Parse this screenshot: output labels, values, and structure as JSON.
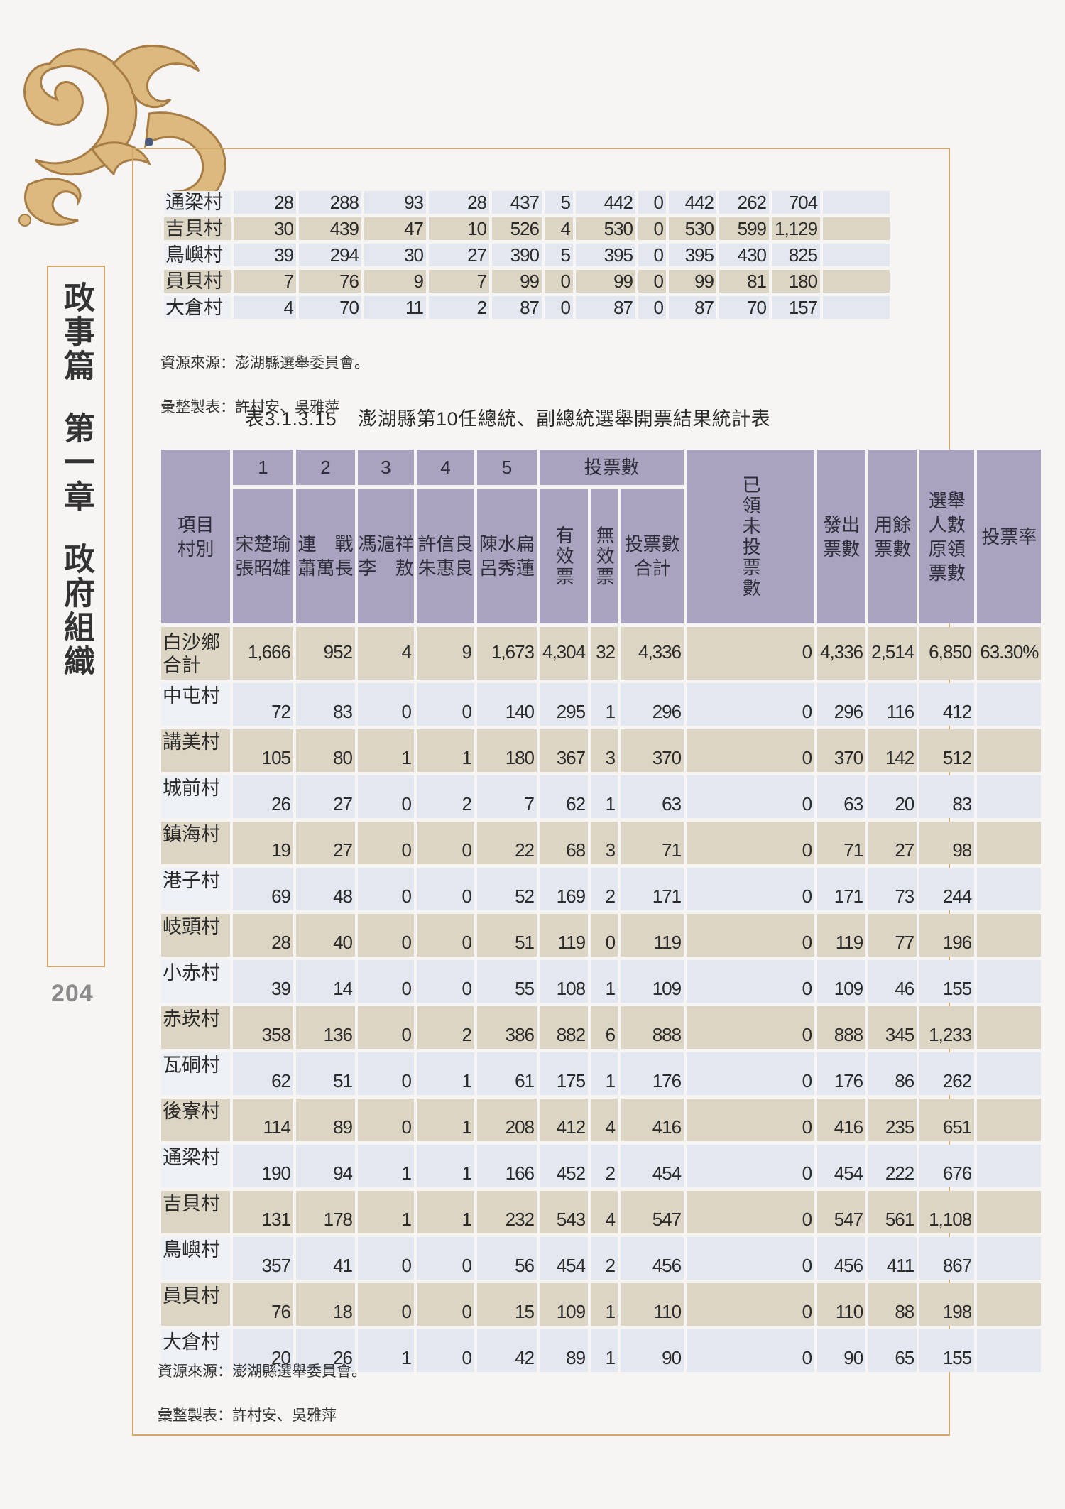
{
  "sidebar": {
    "part": "政事篇",
    "chapter": "第一章",
    "section": "政府組織"
  },
  "page_number": "204",
  "table_prev": {
    "rows": [
      {
        "name": "通梁村",
        "values": [
          "28",
          "288",
          "93",
          "28",
          "437",
          "5",
          "442",
          "0",
          "442",
          "262",
          "704",
          ""
        ]
      },
      {
        "name": "吉貝村",
        "values": [
          "30",
          "439",
          "47",
          "10",
          "526",
          "4",
          "530",
          "0",
          "530",
          "599",
          "1,129",
          ""
        ]
      },
      {
        "name": "鳥嶼村",
        "values": [
          "39",
          "294",
          "30",
          "27",
          "390",
          "5",
          "395",
          "0",
          "395",
          "430",
          "825",
          ""
        ]
      },
      {
        "name": "員貝村",
        "values": [
          "7",
          "76",
          "9",
          "7",
          "99",
          "0",
          "99",
          "0",
          "99",
          "81",
          "180",
          ""
        ]
      },
      {
        "name": "大倉村",
        "values": [
          "4",
          "70",
          "11",
          "2",
          "87",
          "0",
          "87",
          "0",
          "87",
          "70",
          "157",
          ""
        ]
      }
    ],
    "source": "資源來源：澎湖縣選舉委員會。",
    "compiled": "彙整製表：許村安、吳雅萍"
  },
  "table_main": {
    "number": "表3.1.3.15",
    "title": "澎湖縣第10任總統、副總統選舉開票結果統計表",
    "header": {
      "item": "項目\n村別",
      "nums": [
        "1",
        "2",
        "3",
        "4",
        "5"
      ],
      "candidates": [
        "宋楚瑜\n張昭雄",
        "連　戰\n蕭萬長",
        "馮滬祥\n李　敖",
        "許信良\n朱惠良",
        "陳水扁\n呂秀蓮"
      ],
      "votes_group": "投票數",
      "valid": "有效票",
      "invalid": "無效票",
      "votes_total": "投票數\n合計",
      "unvoted": "已領未投票數",
      "issued": "發出\n票數",
      "remaining": "用餘\n票數",
      "electors": "選舉\n人數\n原領\n票數",
      "turnout": "投票率"
    },
    "rows": [
      {
        "name": "白沙鄉\n合計",
        "values": [
          "1,666",
          "952",
          "4",
          "9",
          "1,673",
          "4,304",
          "32",
          "4,336",
          "0",
          "4,336",
          "2,514",
          "6,850",
          "63.30%"
        ]
      },
      {
        "name": "中屯村",
        "values": [
          "72",
          "83",
          "0",
          "0",
          "140",
          "295",
          "1",
          "296",
          "0",
          "296",
          "116",
          "412",
          ""
        ]
      },
      {
        "name": "講美村",
        "values": [
          "105",
          "80",
          "1",
          "1",
          "180",
          "367",
          "3",
          "370",
          "0",
          "370",
          "142",
          "512",
          ""
        ]
      },
      {
        "name": "城前村",
        "values": [
          "26",
          "27",
          "0",
          "2",
          "7",
          "62",
          "1",
          "63",
          "0",
          "63",
          "20",
          "83",
          ""
        ]
      },
      {
        "name": "鎮海村",
        "values": [
          "19",
          "27",
          "0",
          "0",
          "22",
          "68",
          "3",
          "71",
          "0",
          "71",
          "27",
          "98",
          ""
        ]
      },
      {
        "name": "港子村",
        "values": [
          "69",
          "48",
          "0",
          "0",
          "52",
          "169",
          "2",
          "171",
          "0",
          "171",
          "73",
          "244",
          ""
        ]
      },
      {
        "name": "岐頭村",
        "values": [
          "28",
          "40",
          "0",
          "0",
          "51",
          "119",
          "0",
          "119",
          "0",
          "119",
          "77",
          "196",
          ""
        ]
      },
      {
        "name": "小赤村",
        "values": [
          "39",
          "14",
          "0",
          "0",
          "55",
          "108",
          "1",
          "109",
          "0",
          "109",
          "46",
          "155",
          ""
        ]
      },
      {
        "name": "赤崁村",
        "values": [
          "358",
          "136",
          "0",
          "2",
          "386",
          "882",
          "6",
          "888",
          "0",
          "888",
          "345",
          "1,233",
          ""
        ]
      },
      {
        "name": "瓦硐村",
        "values": [
          "62",
          "51",
          "0",
          "1",
          "61",
          "175",
          "1",
          "176",
          "0",
          "176",
          "86",
          "262",
          ""
        ]
      },
      {
        "name": "後寮村",
        "values": [
          "114",
          "89",
          "0",
          "1",
          "208",
          "412",
          "4",
          "416",
          "0",
          "416",
          "235",
          "651",
          ""
        ]
      },
      {
        "name": "通梁村",
        "values": [
          "190",
          "94",
          "1",
          "1",
          "166",
          "452",
          "2",
          "454",
          "0",
          "454",
          "222",
          "676",
          ""
        ]
      },
      {
        "name": "吉貝村",
        "values": [
          "131",
          "178",
          "1",
          "1",
          "232",
          "543",
          "4",
          "547",
          "0",
          "547",
          "561",
          "1,108",
          ""
        ]
      },
      {
        "name": "鳥嶼村",
        "values": [
          "357",
          "41",
          "0",
          "0",
          "56",
          "454",
          "2",
          "456",
          "0",
          "456",
          "411",
          "867",
          ""
        ]
      },
      {
        "name": "員貝村",
        "values": [
          "76",
          "18",
          "0",
          "0",
          "15",
          "109",
          "1",
          "110",
          "0",
          "110",
          "88",
          "198",
          ""
        ]
      },
      {
        "name": "大倉村",
        "values": [
          "20",
          "26",
          "1",
          "0",
          "42",
          "89",
          "1",
          "90",
          "0",
          "90",
          "65",
          "155",
          ""
        ]
      }
    ],
    "source": "資源來源：澎湖縣選舉委員會。",
    "compiled": "彙整製表：許村安、吳雅萍"
  },
  "colors": {
    "frame": "#cfa86a",
    "header": "#aaa3c0",
    "row_blue": "#e2e7f0",
    "row_tan": "#ddd5c3"
  }
}
